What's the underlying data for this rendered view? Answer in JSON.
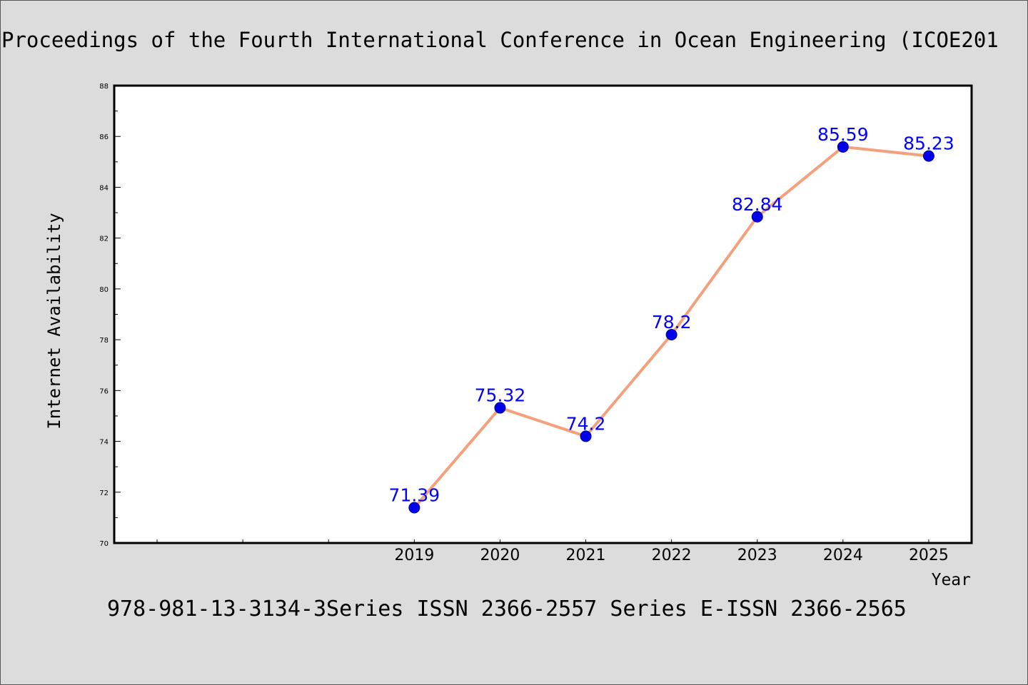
{
  "header": {
    "title": "Proceedings of the Fourth International Conference in Ocean Engineering (ICOE201"
  },
  "footer": {
    "text": "978-981-13-3134-3Series ISSN 2366-2557 Series E-ISSN 2366-2565"
  },
  "chart_data": {
    "type": "line",
    "xlabel": "Year",
    "ylabel": "Internet Availability",
    "ylim": [
      70,
      88
    ],
    "yticks": [
      70,
      72,
      74,
      76,
      78,
      80,
      82,
      84,
      86,
      88
    ],
    "ytick_labels": [
      "70",
      "72",
      "74",
      "76",
      "78",
      "80",
      "82",
      "84",
      "86",
      "88"
    ],
    "x_range": [
      2015.5,
      2025.5
    ],
    "x": [
      2019,
      2020,
      2021,
      2022,
      2023,
      2024,
      2025
    ],
    "x_labels": [
      "2019",
      "2020",
      "2021",
      "2022",
      "2023",
      "2024",
      "2025"
    ],
    "series": [
      {
        "values": [
          71.39,
          75.32,
          74.2,
          78.2,
          82.84,
          85.59,
          85.23
        ],
        "data_labels": [
          "71.39",
          "75.32",
          "74.2",
          "78.2",
          "82.84",
          "85.59",
          "85.23"
        ]
      }
    ],
    "grid": false,
    "line_color": "#f4a07c",
    "marker_color": "#0000ee",
    "data_label_color": "#0000ff"
  }
}
